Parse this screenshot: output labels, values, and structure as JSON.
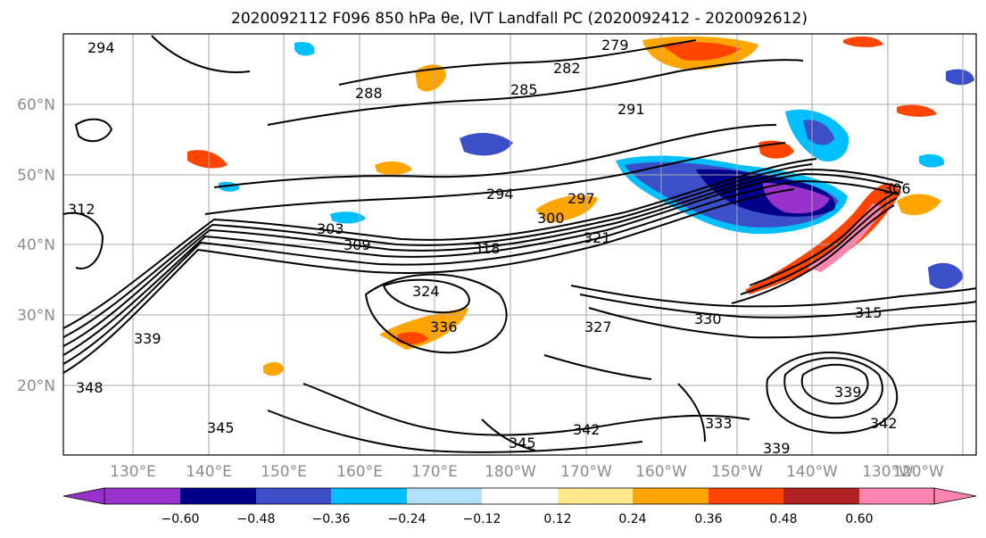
{
  "figure": {
    "title": "2020092112 F096 850 hPa θe, IVT Landfall PC (2020092412 - 2020092612)",
    "lat_labels": [
      "60°N",
      "50°N",
      "40°N",
      "30°N",
      "20°N"
    ],
    "lon_labels": [
      "130°E",
      "140°E",
      "150°E",
      "160°E",
      "170°E",
      "180°W",
      "170°W",
      "160°W",
      "150°W",
      "140°W",
      "130°W",
      "120°W"
    ],
    "contour_labels": [
      "294",
      "279",
      "282",
      "285",
      "288",
      "291",
      "297",
      "300",
      "303",
      "306",
      "309",
      "312",
      "315",
      "318",
      "321",
      "324",
      "327",
      "330",
      "333",
      "336",
      "339",
      "342",
      "345",
      "348"
    ]
  },
  "colorbar": {
    "ticks": [
      "−0.60",
      "−0.48",
      "−0.36",
      "−0.24",
      "−0.12",
      "0.12",
      "0.24",
      "0.36",
      "0.48",
      "0.60"
    ],
    "colors": [
      "#9932cc",
      "#00008b",
      "#3a4fc8",
      "#00bfff",
      "#b0e0fa",
      "#ffffff",
      "#ffe98a",
      "#ffa500",
      "#ff4500",
      "#b22222",
      "#ff85b0"
    ]
  }
}
